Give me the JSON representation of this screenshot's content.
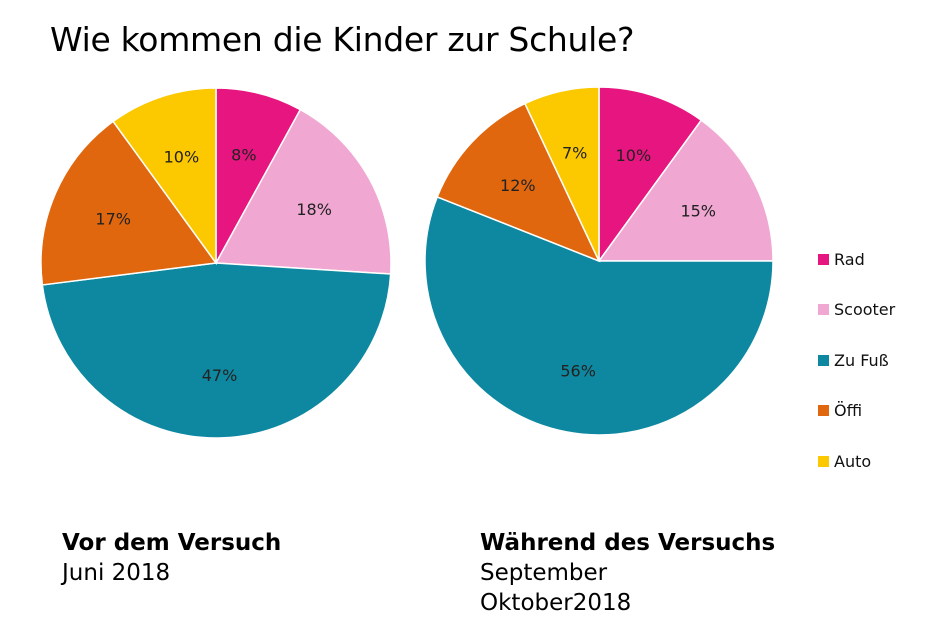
{
  "title": "Wie kommen die Kinder zur Schule?",
  "legend": [
    {
      "name": "Rad",
      "color": "#e6157f"
    },
    {
      "name": "Scooter",
      "color": "#f0a8d2"
    },
    {
      "name": "Zu Fuß",
      "color": "#0e88a0"
    },
    {
      "name": "Öffi",
      "color": "#e0670e"
    },
    {
      "name": "Auto",
      "color": "#fcc800"
    }
  ],
  "chart_data": [
    {
      "type": "pie",
      "categories": [
        "Rad",
        "Scooter",
        "Zu Fuß",
        "Öffi",
        "Auto"
      ],
      "values": [
        8,
        18,
        47,
        17,
        10
      ],
      "labels": [
        "8%",
        "18%",
        "47%",
        "17%",
        "10%"
      ],
      "legend": "right"
    },
    {
      "type": "pie",
      "categories": [
        "Rad",
        "Scooter",
        "Zu Fuß",
        "Öffi",
        "Auto"
      ],
      "values": [
        10,
        15,
        56,
        12,
        7
      ],
      "labels": [
        "10%",
        "15%",
        "56%",
        "12%",
        "7%"
      ],
      "legend": "right"
    }
  ],
  "captions": [
    {
      "heading": "Vor dem Versuch",
      "line1": "Juni 2018",
      "line2": ""
    },
    {
      "heading": "Während des Versuchs",
      "line1": "September",
      "line2": "Oktober2018"
    }
  ]
}
